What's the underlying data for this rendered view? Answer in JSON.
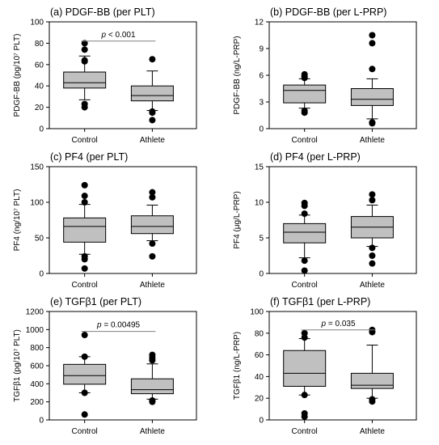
{
  "chart_data": [
    {
      "type": "box",
      "title": "(a) PDGF-BB (per PLT)",
      "ylabel": "PDGF-BB (pg/10⁷ PLT)",
      "ylim": [
        0,
        100
      ],
      "yticks": [
        0,
        20,
        40,
        60,
        80,
        100
      ],
      "categories": [
        "Control",
        "Athlete"
      ],
      "series": [
        {
          "category": "Control",
          "q1": 38,
          "median": 43,
          "q3": 53,
          "whisker_low": 27,
          "whisker_high": 68,
          "outliers": [
            20,
            23,
            63,
            64,
            74,
            80
          ]
        },
        {
          "category": "Athlete",
          "q1": 26,
          "median": 31,
          "q3": 40,
          "whisker_low": 17,
          "whisker_high": 54,
          "outliers": [
            8,
            15,
            16,
            65
          ]
        }
      ],
      "annotation": {
        "prefix": "p",
        "text": " < 0.001"
      }
    },
    {
      "type": "box",
      "title": "(b) PDGF-BB (per L-PRP)",
      "ylabel": "PDGF-BB (ng/L-PRP)",
      "ylim": [
        0,
        12
      ],
      "yticks": [
        0,
        3,
        6,
        9,
        12
      ],
      "categories": [
        "Control",
        "Athlete"
      ],
      "series": [
        {
          "category": "Control",
          "q1": 2.9,
          "median": 4.3,
          "q3": 4.9,
          "whisker_low": 2.3,
          "whisker_high": 5.6,
          "outliers": [
            1.8,
            2.0,
            5.7,
            5.9,
            6.1
          ]
        },
        {
          "category": "Athlete",
          "q1": 2.6,
          "median": 3.3,
          "q3": 4.5,
          "whisker_low": 1.1,
          "whisker_high": 5.6,
          "outliers": [
            0.6,
            0.7,
            6.7,
            9.6,
            10.5
          ]
        }
      ],
      "annotation": null
    },
    {
      "type": "box",
      "title": "(c) PF4 (per PLT)",
      "ylabel": "PF4 (ng/10⁷ PLT)",
      "ylim": [
        0,
        150
      ],
      "yticks": [
        0,
        50,
        100,
        150
      ],
      "categories": [
        "Control",
        "Athlete"
      ],
      "series": [
        {
          "category": "Control",
          "q1": 44,
          "median": 66,
          "q3": 78,
          "whisker_low": 27,
          "whisker_high": 97,
          "outliers": [
            7,
            20,
            24,
            100,
            109,
            124
          ]
        },
        {
          "category": "Athlete",
          "q1": 56,
          "median": 66,
          "q3": 81,
          "whisker_low": 46,
          "whisker_high": 96,
          "outliers": [
            24,
            42,
            107,
            114
          ]
        }
      ],
      "annotation": null
    },
    {
      "type": "box",
      "title": "(d) PF4 (per L-PRP)",
      "ylabel": "PF4 (μg/L-PRP)",
      "ylim": [
        0,
        15
      ],
      "yticks": [
        0,
        5,
        10,
        15
      ],
      "categories": [
        "Control",
        "Athlete"
      ],
      "series": [
        {
          "category": "Control",
          "q1": 4.3,
          "median": 5.8,
          "q3": 7.0,
          "whisker_low": 2.2,
          "whisker_high": 8.2,
          "outliers": [
            0.4,
            1.8,
            8.4,
            9.5,
            9.9
          ]
        },
        {
          "category": "Athlete",
          "q1": 5.0,
          "median": 6.5,
          "q3": 8.0,
          "whisker_low": 3.8,
          "whisker_high": 9.6,
          "outliers": [
            1.4,
            2.5,
            3.6,
            10.3,
            11.1
          ]
        }
      ],
      "annotation": null
    },
    {
      "type": "box",
      "title": "(e) TGFβ1 (per PLT)",
      "ylabel": "TGFβ1 (pg/10⁷ PLT)",
      "ylim": [
        0,
        1200
      ],
      "yticks": [
        0,
        200,
        400,
        600,
        800,
        1000,
        1200
      ],
      "categories": [
        "Control",
        "Athlete"
      ],
      "series": [
        {
          "category": "Control",
          "q1": 395,
          "median": 490,
          "q3": 615,
          "whisker_low": 300,
          "whisker_high": 700,
          "outliers": [
            60,
            300,
            700,
            940
          ]
        },
        {
          "category": "Athlete",
          "q1": 290,
          "median": 335,
          "q3": 455,
          "whisker_low": 230,
          "whisker_high": 620,
          "outliers": [
            200,
            215,
            660,
            690,
            720
          ]
        }
      ],
      "annotation": {
        "prefix": "p",
        "text": " = 0.00495"
      }
    },
    {
      "type": "box",
      "title": "(f) TGFβ1 (per L-PRP)",
      "ylabel": "TGFβ1 (ng/L-PRP)",
      "ylim": [
        0,
        100
      ],
      "yticks": [
        0,
        20,
        40,
        60,
        80,
        100
      ],
      "categories": [
        "Control",
        "Athlete"
      ],
      "series": [
        {
          "category": "Control",
          "q1": 31,
          "median": 43,
          "q3": 64,
          "whisker_low": 23,
          "whisker_high": 75,
          "outliers": [
            3,
            6,
            23,
            76,
            80
          ]
        },
        {
          "category": "Athlete",
          "q1": 29,
          "median": 32,
          "q3": 43,
          "whisker_low": 20,
          "whisker_high": 69,
          "outliers": [
            17,
            19,
            81,
            83
          ]
        }
      ],
      "annotation": {
        "prefix": "p",
        "text": " = 0.035"
      }
    }
  ]
}
